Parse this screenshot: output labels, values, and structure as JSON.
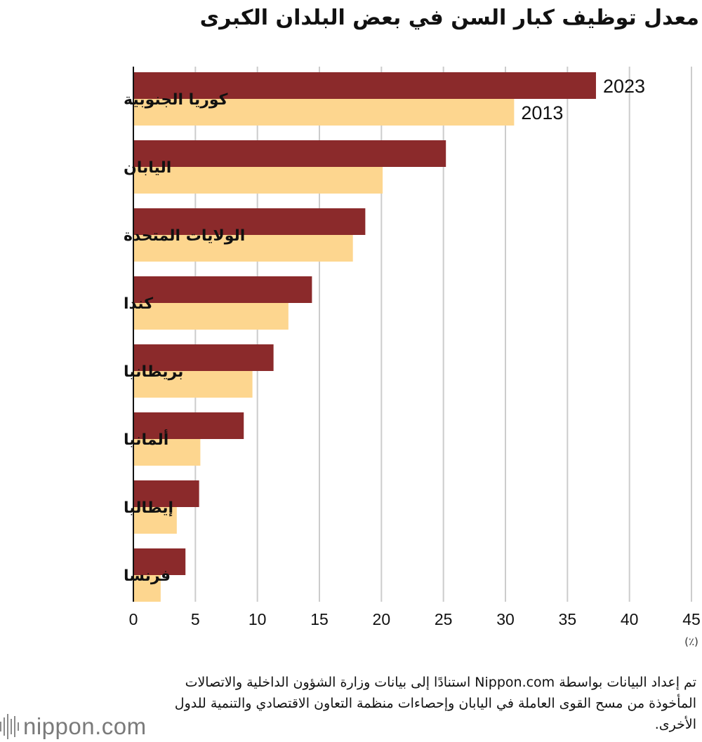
{
  "title": "معدل توظيف كبار السن في بعض البلدان الكبرى",
  "chart_data": {
    "type": "bar",
    "orientation": "horizontal",
    "categories": [
      "كوريا الجنوبية",
      "اليابان",
      "الولايات المتحدة",
      "كندا",
      "بريطانيا",
      "ألمانيا",
      "إيطاليا",
      "فرنسا"
    ],
    "series": [
      {
        "name": "2023",
        "values": [
          37.3,
          25.2,
          18.7,
          14.4,
          11.3,
          8.9,
          5.3,
          4.2
        ],
        "color": "#8b2a2b"
      },
      {
        "name": "2013",
        "values": [
          30.7,
          20.1,
          17.7,
          12.5,
          9.6,
          5.4,
          3.5,
          2.2
        ],
        "color": "#fdd68f"
      }
    ],
    "xlim": [
      0,
      45
    ],
    "xticks": [
      "0",
      "5",
      "10",
      "15",
      "20",
      "25",
      "30",
      "35",
      "40",
      "45"
    ],
    "unit": "(٪)",
    "grid": true,
    "legend": "data labels on first category bars"
  },
  "source": "تم إعداد البيانات بواسطة Nippon.com استنادًا إلى بيانات وزارة الشؤون الداخلية والاتصالات المأخوذة  من مسح القوى العاملة في اليابان وإحصاءات منظمة التعاون الاقتصادي والتنمية للدول الأخرى.",
  "logo": {
    "text": "nippon.com",
    "icon": "nippon-waveform-icon"
  }
}
